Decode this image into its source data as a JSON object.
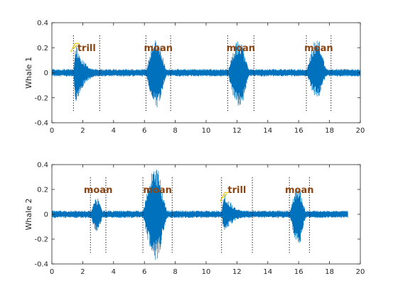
{
  "colors": {
    "signal": "#0072bd",
    "annotation_text": "#8a4513",
    "marker": "#e6c200",
    "axis": "#262626",
    "boundary": "#000000"
  },
  "chart_data": [
    {
      "type": "line",
      "ylabel": "Whale 1",
      "xlabel": "",
      "xlim": [
        0,
        20
      ],
      "ylim": [
        -0.4,
        0.4
      ],
      "xticks": [
        "0",
        "2",
        "4",
        "6",
        "8",
        "10",
        "12",
        "14",
        "16",
        "18",
        "20"
      ],
      "yticks": [
        "-0.4",
        "-0.2",
        "0",
        "0.2",
        "0.4"
      ],
      "grid": false,
      "signal_end_x": 20,
      "noise_amplitude": 0.03,
      "segments": [
        {
          "label": "trill",
          "start": 1.4,
          "end": 3.1,
          "peak_pos": 0.24,
          "peak_neg": -0.28,
          "onset_x": 1.5,
          "onset_y": 0.2
        },
        {
          "label": "moan",
          "start": 6.1,
          "end": 7.7,
          "peak_pos": 0.28,
          "peak_neg": -0.29
        },
        {
          "label": "moan",
          "start": 11.4,
          "end": 13.1,
          "peak_pos": 0.26,
          "peak_neg": -0.29
        },
        {
          "label": "moan",
          "start": 16.5,
          "end": 18.1,
          "peak_pos": 0.27,
          "peak_neg": -0.2
        }
      ]
    },
    {
      "type": "line",
      "ylabel": "Whale 2",
      "xlabel": "",
      "xlim": [
        0,
        20
      ],
      "ylim": [
        -0.4,
        0.4
      ],
      "xticks": [
        "0",
        "2",
        "4",
        "6",
        "8",
        "10",
        "12",
        "14",
        "16",
        "18",
        "20"
      ],
      "yticks": [
        "-0.4",
        "-0.2",
        "0",
        "0.2",
        "0.4"
      ],
      "grid": false,
      "signal_end_x": 19.2,
      "noise_amplitude": 0.03,
      "segments": [
        {
          "label": "moan",
          "start": 2.5,
          "end": 3.5,
          "peak_pos": 0.13,
          "peak_neg": -0.14
        },
        {
          "label": "moan",
          "start": 5.9,
          "end": 7.8,
          "peak_pos": 0.38,
          "peak_neg": -0.37
        },
        {
          "label": "trill",
          "start": 11.0,
          "end": 13.0,
          "peak_pos": 0.18,
          "peak_neg": -0.16,
          "onset_x": 11.2,
          "onset_y": 0.14
        },
        {
          "label": "moan",
          "start": 15.4,
          "end": 16.7,
          "peak_pos": 0.22,
          "peak_neg": -0.24
        }
      ]
    }
  ]
}
